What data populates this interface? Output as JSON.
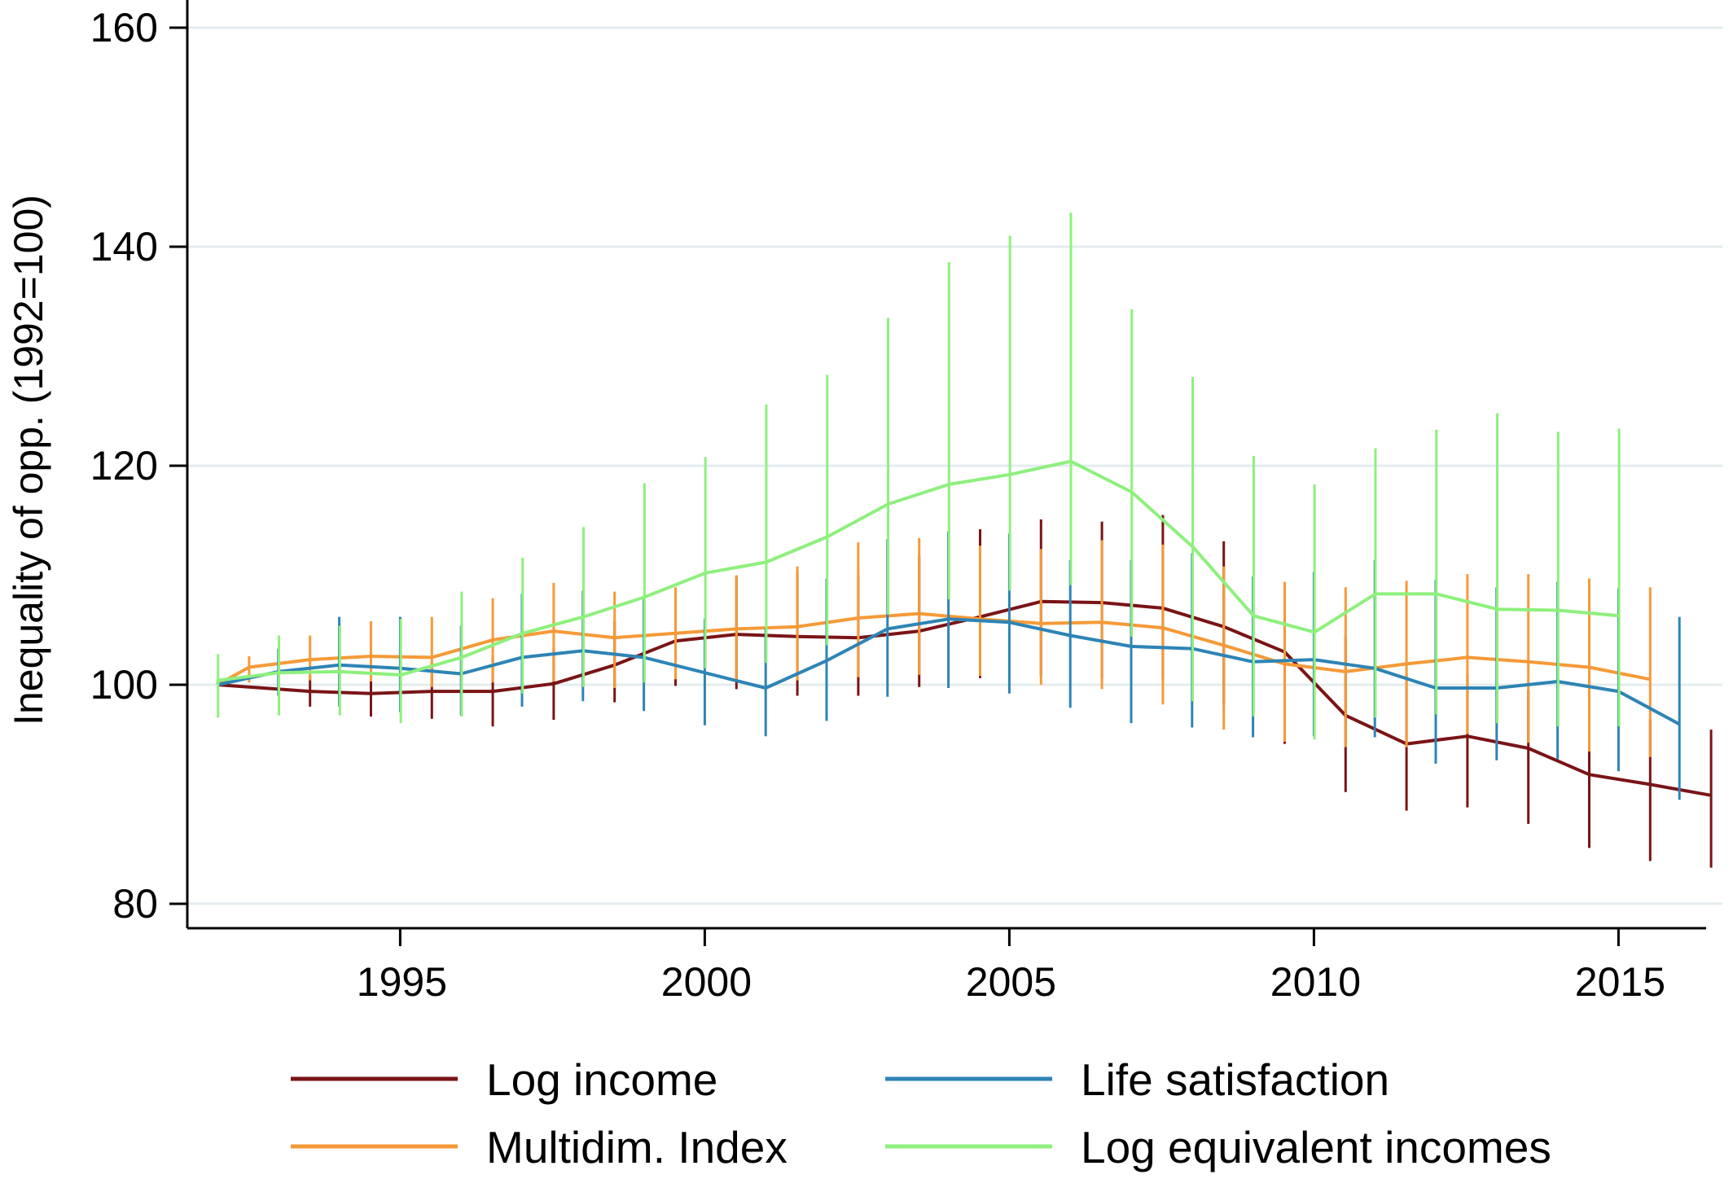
{
  "chart_data": {
    "type": "line",
    "title": "",
    "xlabel": "",
    "ylabel": "Inequality of opp. (1992=100)",
    "xlim": [
      1992,
      2016.3
    ],
    "ylim": [
      80,
      160
    ],
    "xticks": [
      1995,
      2000,
      2005,
      2010,
      2015
    ],
    "yticks": [
      80,
      100,
      120,
      140,
      160
    ],
    "grid": true,
    "legend_position": "bottom",
    "error_bars": true,
    "x": [
      1992,
      1993,
      1994,
      1995,
      1996,
      1997,
      1998,
      1999,
      2000,
      2001,
      2002,
      2003,
      2004,
      2005,
      2006,
      2007,
      2008,
      2009,
      2010,
      2011,
      2012,
      2013,
      2014,
      2015,
      2016
    ],
    "series": [
      {
        "name": "Log income",
        "color": "#7a1416",
        "values": [
          100,
          99.4,
          99.2,
          99.4,
          99.4,
          100.1,
          101.8,
          104.0,
          104.6,
          104.4,
          104.3,
          104.9,
          106.2,
          107.6,
          107.5,
          107.0,
          105.3,
          103.0,
          97.2,
          94.6,
          95.3,
          94.2,
          91.8,
          90.9,
          89.9
        ],
        "lower": [
          100,
          98.0,
          97.1,
          96.9,
          96.2,
          96.8,
          98.4,
          99.9,
          99.6,
          99.0,
          99.0,
          99.8,
          100.6,
          100.8,
          100.6,
          100.5,
          98.2,
          94.6,
          90.2,
          88.5,
          88.8,
          87.3,
          85.1,
          83.9,
          83.3
        ],
        "upper": [
          100,
          100.8,
          101.4,
          102.0,
          102.5,
          103.4,
          105.8,
          108.6,
          109.9,
          110.3,
          110.0,
          111.7,
          114.2,
          115.1,
          114.9,
          115.5,
          113.1,
          108.4,
          104.4,
          101.0,
          101.0,
          99.5,
          97.6,
          96.8,
          95.9
        ]
      },
      {
        "name": "Multidim. Index",
        "color": "#f59a38",
        "values": [
          100,
          101.6,
          102.3,
          102.6,
          102.5,
          104.1,
          104.9,
          104.3,
          104.7,
          105.1,
          105.3,
          106.1,
          106.5,
          106.0,
          105.6,
          105.7,
          105.2,
          103.6,
          101.9,
          101.2,
          101.9,
          102.5,
          102.1,
          101.6,
          100.5
        ],
        "lower": [
          100,
          100.2,
          100.4,
          100.3,
          99.8,
          100.2,
          100.3,
          99.7,
          100.5,
          100.3,
          100.4,
          100.7,
          100.9,
          100.8,
          100.0,
          99.6,
          98.2,
          95.9,
          94.8,
          94.3,
          94.3,
          95.5,
          94.7,
          93.9,
          93.4
        ],
        "upper": [
          100,
          102.6,
          104.5,
          105.8,
          106.2,
          107.9,
          109.3,
          108.5,
          108.9,
          110.0,
          110.8,
          113.0,
          113.4,
          112.7,
          112.4,
          113.2,
          112.8,
          110.8,
          109.4,
          108.9,
          109.5,
          110.1,
          110.1,
          109.7,
          108.9
        ]
      },
      {
        "name": "Life satisfaction",
        "color": "#2e84b5",
        "values": [
          100,
          101.2,
          101.8,
          101.5,
          101.0,
          102.5,
          103.1,
          102.5,
          101.1,
          99.7,
          102.2,
          105.1,
          106.0,
          105.7,
          104.5,
          103.5,
          103.3,
          102.1,
          102.3,
          101.5,
          99.7,
          99.7,
          100.3,
          99.4,
          96.4
        ],
        "lower": [
          100,
          99.0,
          98.0,
          97.5,
          97.2,
          98.0,
          98.5,
          97.6,
          96.3,
          95.3,
          96.7,
          98.9,
          99.7,
          99.2,
          97.9,
          96.5,
          96.1,
          95.2,
          95.3,
          95.2,
          92.8,
          93.1,
          93.2,
          92.1,
          89.5
        ],
        "upper": [
          100,
          103.3,
          106.2,
          106.2,
          105.4,
          108.3,
          108.6,
          107.8,
          106.0,
          105.2,
          109.7,
          113.3,
          114.0,
          113.8,
          111.4,
          111.4,
          112.0,
          109.9,
          110.3,
          111.4,
          109.6,
          108.9,
          109.4,
          108.8,
          106.2
        ]
      },
      {
        "name": "Log equivalent incomes",
        "color": "#8ef07d",
        "values": [
          100,
          100.4,
          101.1,
          101.2,
          100.9,
          102.5,
          104.7,
          106.2,
          108.0,
          110.2,
          111.2,
          113.5,
          116.5,
          118.3,
          119.2,
          120.4,
          117.6,
          112.6,
          106.3,
          104.8,
          108.3,
          108.3,
          106.9,
          106.8,
          106.3
        ],
        "lower": [
          100,
          97.0,
          97.2,
          97.2,
          96.5,
          97.1,
          99.2,
          99.8,
          100.2,
          101.5,
          102.0,
          103.6,
          106.4,
          107.8,
          108.6,
          109.1,
          104.4,
          98.5,
          97.1,
          95.0,
          97.0,
          97.3,
          96.5,
          96.2,
          96.2
        ],
        "upper": [
          100,
          102.8,
          104.5,
          105.4,
          106.0,
          108.5,
          111.6,
          114.4,
          118.4,
          120.8,
          125.6,
          128.3,
          133.5,
          138.6,
          141.0,
          143.1,
          134.3,
          128.1,
          120.9,
          118.3,
          121.6,
          123.3,
          124.8,
          123.1,
          123.4
        ]
      }
    ]
  }
}
